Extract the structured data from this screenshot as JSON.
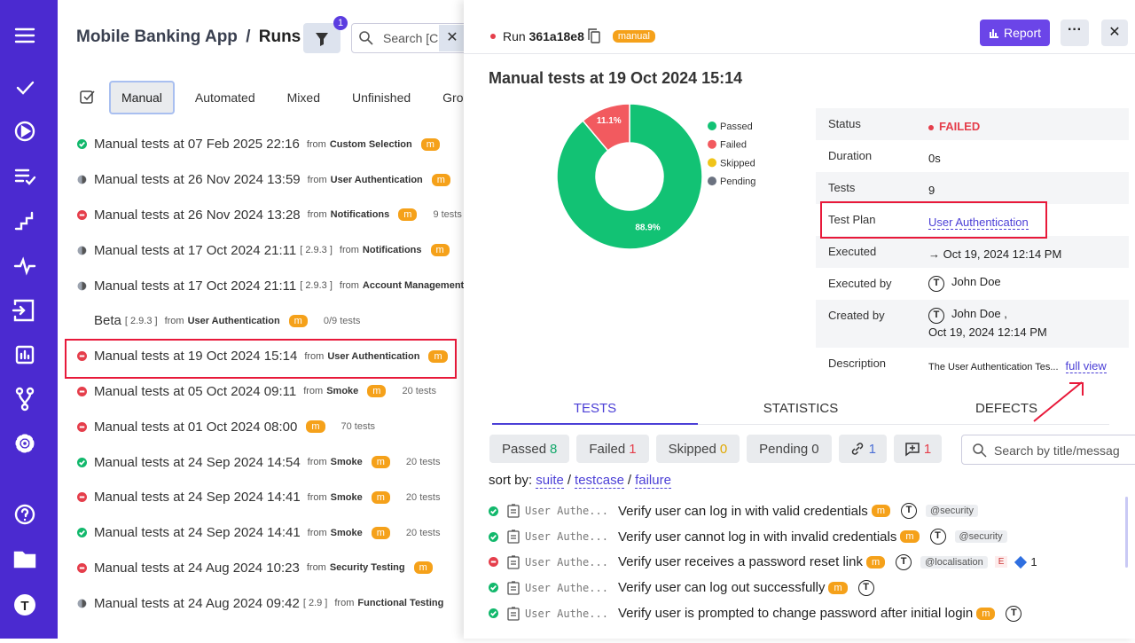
{
  "sidebar": {
    "avatar": "T"
  },
  "header": {
    "project": "Mobile Banking App",
    "separator": "/",
    "page": "Runs",
    "filter_count": 1,
    "search_placeholder": "Search [Cr"
  },
  "run_tabs": [
    "Manual",
    "Automated",
    "Mixed",
    "Unfinished",
    "Grou"
  ],
  "from_label": "from",
  "runs": [
    {
      "status": "passed",
      "title": "Manual tests at 07 Feb 2025 22:16",
      "suite": "Custom Selection",
      "badge": "m"
    },
    {
      "status": "pending",
      "title": "Manual tests at 26 Nov 2024 13:59",
      "suite": "User Authentication",
      "badge": "m"
    },
    {
      "status": "failed",
      "title": "Manual tests at 26 Nov 2024 13:28",
      "suite": "Notifications",
      "badge": "m",
      "tests": "9 tests"
    },
    {
      "status": "pending",
      "title": "Manual tests at 17 Oct 2024 21:11",
      "version": "[ 2.9.3 ]",
      "suite": "Notifications",
      "badge": "m"
    },
    {
      "status": "pending",
      "title": "Manual tests at 17 Oct 2024 21:11",
      "version": "[ 2.9.3 ]",
      "suite": "Account Management"
    },
    {
      "status": "none",
      "title": "Beta",
      "version": "[ 2.9.3 ]",
      "suite": "User Authentication",
      "badge": "m",
      "tests": "0/9 tests"
    },
    {
      "status": "failed",
      "title": "Manual tests at 19 Oct 2024 15:14",
      "suite": "User Authentication",
      "badge": "m",
      "selected": true
    },
    {
      "status": "failed",
      "title": "Manual tests at 05 Oct 2024 09:11",
      "suite": "Smoke",
      "badge": "m",
      "tests": "20 tests"
    },
    {
      "status": "failed",
      "title": "Manual tests at 01 Oct 2024 08:00",
      "badge": "m",
      "tests": "70 tests"
    },
    {
      "status": "passed",
      "title": "Manual tests at 24 Sep 2024 14:54",
      "suite": "Smoke",
      "badge": "m",
      "tests": "20 tests"
    },
    {
      "status": "failed",
      "title": "Manual tests at 24 Sep 2024 14:41",
      "suite": "Smoke",
      "badge": "m",
      "tests": "20 tests"
    },
    {
      "status": "passed",
      "title": "Manual tests at 24 Sep 2024 14:41",
      "suite": "Smoke",
      "badge": "m",
      "tests": "20 tests"
    },
    {
      "status": "failed",
      "title": "Manual tests at 24 Aug 2024 10:23",
      "suite": "Security Testing",
      "badge": "m"
    },
    {
      "status": "pending",
      "title": "Manual tests at 24 Aug 2024 09:42",
      "version": "[ 2.9 ]",
      "suite": "Functional Testing"
    }
  ],
  "run": {
    "label": "Run",
    "id": "361a18e8",
    "badge": "manual",
    "report": "Report",
    "title": "Manual tests at 19 Oct 2024 15:14"
  },
  "chart": {
    "type": "donut",
    "categories": [
      "Passed",
      "Failed",
      "Skipped",
      "Pending"
    ],
    "values": [
      88.9,
      11.1,
      0,
      0
    ],
    "value_labels": [
      "88.9%",
      "11.1%",
      null,
      null
    ],
    "colors": [
      "#12c274",
      "#f25a5f",
      "#f0c419",
      "#6b7280"
    ]
  },
  "details": [
    {
      "label": "Status",
      "value": "FAILED"
    },
    {
      "label": "Duration",
      "value": "0s"
    },
    {
      "label": "Tests",
      "value": 9
    },
    {
      "label": "Test Plan",
      "value": "User Authentication"
    },
    {
      "label": "Executed",
      "value": "→ Oct 19, 2024 12:14 PM"
    },
    {
      "label": "Executed by",
      "value": "John Doe"
    },
    {
      "label": "Created by",
      "value": "John Doe ,",
      "value2": "Oct 19, 2024 12:14 PM"
    },
    {
      "label": "Description",
      "value": "The User Authentication Tes...",
      "link": "full view"
    }
  ],
  "detail_tabs": [
    "TESTS",
    "STATISTICS",
    "DEFECTS"
  ],
  "filters": [
    {
      "label": "Passed",
      "count": 8,
      "color": "#12a86a"
    },
    {
      "label": "Failed",
      "count": 1,
      "color": "#e53e4b"
    },
    {
      "label": "Skipped",
      "count": 0,
      "color": "#e0a800"
    },
    {
      "label": "Pending",
      "count": 0,
      "color": "#444"
    }
  ],
  "link_count": 1,
  "comment_count": 1,
  "test_search_placeholder": "Search by title/messag",
  "sort": {
    "label": "sort by:",
    "separator": "/",
    "options": [
      "suite",
      "testcase",
      "failure"
    ]
  },
  "tests": [
    {
      "status": "passed",
      "suite": "User Authe...",
      "title": "Verify user can log in with valid credentials",
      "badge": "m",
      "tags": [
        "@security"
      ]
    },
    {
      "status": "passed",
      "suite": "User Authe...",
      "title": "Verify user cannot log in with invalid credentials",
      "badge": "m",
      "tags": [
        "@security"
      ]
    },
    {
      "status": "failed",
      "suite": "User Authe...",
      "title": "Verify user receives a password reset link",
      "badge": "m",
      "tags": [
        "@localisation"
      ],
      "extra": "E",
      "issues": 1
    },
    {
      "status": "passed",
      "suite": "User Authe...",
      "title": "Verify user can log out successfully",
      "badge": "m",
      "tags": []
    },
    {
      "status": "passed",
      "suite": "User Authe...",
      "title": "Verify user is prompted to change password after initial login",
      "badge": "m",
      "tags": []
    }
  ]
}
